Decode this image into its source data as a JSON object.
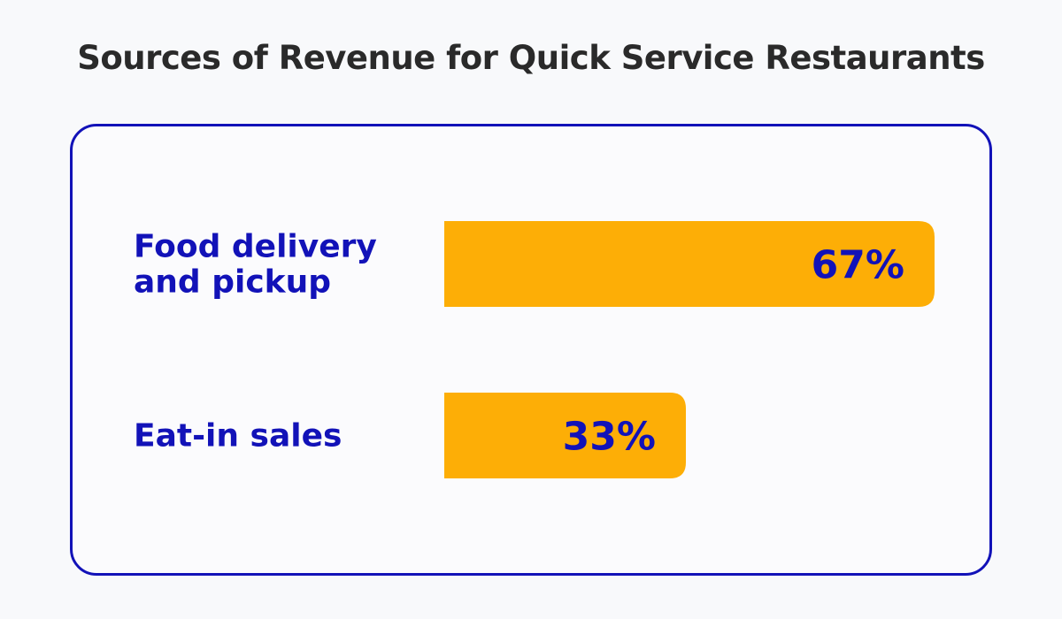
{
  "title": "Sources of Revenue for Quick Service Restaurants",
  "colors": {
    "bar": "#fdae06",
    "text": "#1212b8",
    "border": "#1212b8",
    "title": "#2a2a2a",
    "background": "#f8f9fb"
  },
  "chart_data": {
    "type": "bar",
    "orientation": "horizontal",
    "title": "Sources of Revenue for Quick Service Restaurants",
    "categories": [
      [
        "Food delivery",
        "and pickup"
      ],
      [
        "Eat-in sales"
      ]
    ],
    "values": [
      67,
      33
    ],
    "value_labels": [
      "67%",
      "33%"
    ],
    "unit": "%",
    "xlim": [
      0,
      100
    ],
    "grid": false,
    "legend": "none"
  }
}
